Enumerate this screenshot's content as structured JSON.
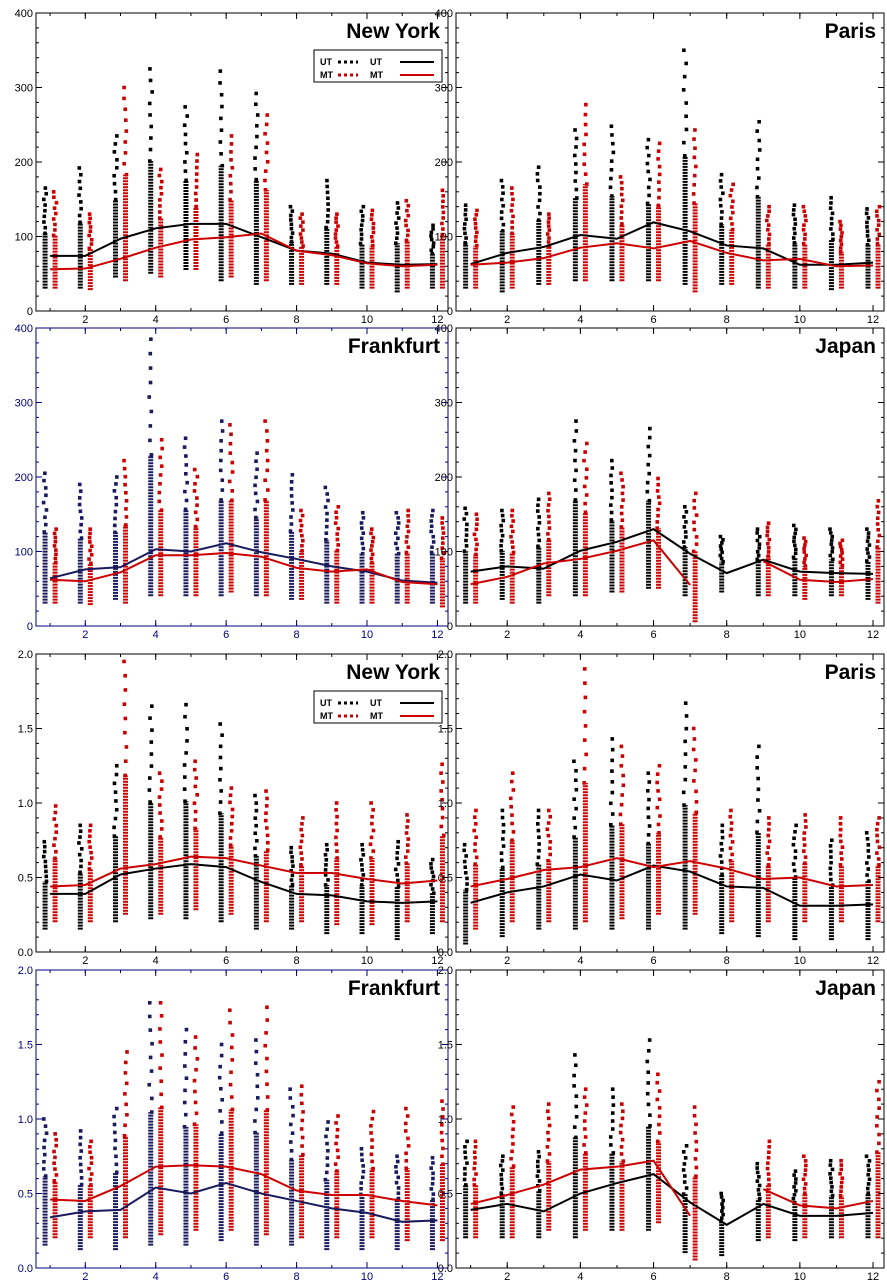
{
  "chart_data": [
    {
      "type": "line",
      "title": "New York",
      "xlim": [
        0.6,
        12.3
      ],
      "ylim": [
        0,
        400
      ],
      "xticks": [
        "2",
        "4",
        "6",
        "8",
        "10",
        "12"
      ],
      "yticks": [
        "0",
        "100",
        "200",
        "300",
        "400"
      ],
      "axis_color": "#000000",
      "legend": {
        "position": "top-right",
        "labels": [
          "UT",
          "UT",
          "MT",
          "MT"
        ]
      },
      "series": [
        {
          "name": "UT",
          "color": "#000000",
          "x": [
            1,
            2,
            3,
            4,
            5,
            6,
            7,
            8,
            9,
            10,
            11,
            12
          ],
          "y": [
            74,
            74,
            97,
            111,
            117,
            117,
            99,
            81,
            77,
            65,
            62,
            63
          ],
          "scatter_min": [
            30,
            30,
            45,
            50,
            55,
            40,
            35,
            35,
            35,
            30,
            25,
            30
          ],
          "scatter_max": [
            165,
            192,
            235,
            325,
            274,
            322,
            292,
            140,
            175,
            140,
            145,
            115
          ]
        },
        {
          "name": "MT",
          "color": "#cc0000",
          "x": [
            1,
            2,
            3,
            4,
            5,
            6,
            7,
            8,
            9,
            10,
            11,
            12
          ],
          "y": [
            56,
            57,
            70,
            85,
            96,
            99,
            104,
            81,
            75,
            64,
            60,
            62
          ],
          "scatter_min": [
            30,
            28,
            40,
            45,
            55,
            45,
            40,
            35,
            35,
            30,
            30,
            30
          ],
          "scatter_max": [
            160,
            130,
            300,
            190,
            210,
            235,
            263,
            130,
            130,
            135,
            148,
            162
          ]
        }
      ]
    },
    {
      "type": "line",
      "title": "Paris",
      "xlim": [
        0.6,
        12.3
      ],
      "ylim": [
        0,
        400
      ],
      "xticks": [
        "2",
        "4",
        "6",
        "8",
        "10",
        "12"
      ],
      "yticks": [
        "0",
        "100",
        "200",
        "300",
        "400"
      ],
      "axis_color": "#000000",
      "series": [
        {
          "name": "UT",
          "color": "#000000",
          "x": [
            1,
            2,
            3,
            4,
            5,
            6,
            7,
            8,
            9,
            10,
            11,
            12
          ],
          "y": [
            63,
            78,
            86,
            102,
            97,
            119,
            107,
            88,
            84,
            62,
            62,
            65
          ],
          "scatter_min": [
            30,
            25,
            35,
            40,
            40,
            40,
            35,
            35,
            30,
            30,
            28,
            30
          ],
          "scatter_max": [
            142,
            175,
            193,
            243,
            248,
            230,
            350,
            183,
            254,
            142,
            152,
            137
          ]
        },
        {
          "name": "MT",
          "color": "#cc0000",
          "x": [
            1,
            2,
            3,
            4,
            5,
            6,
            7,
            8,
            9,
            10,
            11,
            12
          ],
          "y": [
            62,
            65,
            71,
            85,
            91,
            84,
            94,
            78,
            68,
            70,
            60,
            61
          ],
          "scatter_min": [
            30,
            30,
            35,
            40,
            40,
            40,
            25,
            35,
            30,
            30,
            30,
            30
          ],
          "scatter_max": [
            135,
            165,
            130,
            277,
            180,
            225,
            243,
            170,
            140,
            140,
            120,
            140
          ]
        }
      ]
    },
    {
      "type": "line",
      "title": "Frankfurt",
      "xlim": [
        0.6,
        12.3
      ],
      "ylim": [
        0,
        400
      ],
      "xticks": [
        "2",
        "4",
        "6",
        "8",
        "10",
        "12"
      ],
      "yticks": [
        "0",
        "100",
        "200",
        "300",
        "400"
      ],
      "axis_color": "#000080",
      "series": [
        {
          "name": "UT",
          "color": "#1a1a5e",
          "x": [
            1,
            2,
            3,
            4,
            5,
            6,
            7,
            8,
            9,
            10,
            11,
            12
          ],
          "y": [
            64,
            76,
            79,
            103,
            100,
            111,
            99,
            90,
            80,
            73,
            61,
            58
          ],
          "scatter_min": [
            30,
            30,
            35,
            40,
            40,
            40,
            40,
            35,
            30,
            30,
            30,
            30
          ],
          "scatter_max": [
            205,
            190,
            200,
            385,
            252,
            275,
            232,
            203,
            186,
            152,
            152,
            155
          ]
        },
        {
          "name": "MT",
          "color": "#cc0000",
          "x": [
            1,
            2,
            3,
            4,
            5,
            6,
            7,
            8,
            9,
            10,
            11,
            12
          ],
          "y": [
            62,
            60,
            72,
            95,
            95,
            98,
            93,
            78,
            73,
            76,
            59,
            56
          ],
          "scatter_min": [
            30,
            28,
            30,
            40,
            40,
            45,
            40,
            35,
            30,
            30,
            30,
            25
          ],
          "scatter_max": [
            130,
            130,
            222,
            250,
            210,
            270,
            275,
            155,
            160,
            130,
            155,
            145
          ]
        }
      ]
    },
    {
      "type": "line",
      "title": "Japan",
      "xlim": [
        0.6,
        12.3
      ],
      "ylim": [
        0,
        400
      ],
      "xticks": [
        "2",
        "4",
        "6",
        "8",
        "10",
        "12"
      ],
      "yticks": [
        "0",
        "100",
        "200",
        "300",
        "400"
      ],
      "axis_color": "#000000",
      "series": [
        {
          "name": "UT",
          "color": "#000000",
          "x": [
            1,
            2,
            3,
            4,
            5,
            6,
            7,
            8,
            9,
            10,
            11,
            12
          ],
          "y": [
            73,
            80,
            77,
            101,
            113,
            130,
            97,
            71,
            89,
            73,
            71,
            70
          ],
          "scatter_min": [
            30,
            35,
            30,
            40,
            45,
            50,
            40,
            45,
            40,
            40,
            40,
            35
          ],
          "scatter_max": [
            158,
            155,
            170,
            275,
            222,
            265,
            160,
            120,
            130,
            135,
            130,
            130
          ]
        },
        {
          "name": "MT",
          "color": "#cc0000",
          "x": [
            1,
            2,
            3,
            4,
            5,
            6,
            7,
            8,
            9,
            10,
            11,
            12
          ],
          "y": [
            56,
            66,
            84,
            90,
            101,
            115,
            55,
            null,
            87,
            62,
            59,
            63
          ],
          "scatter_min": [
            30,
            30,
            40,
            40,
            45,
            50,
            5,
            null,
            40,
            35,
            40,
            30
          ],
          "scatter_max": [
            150,
            155,
            178,
            245,
            205,
            198,
            178,
            null,
            138,
            118,
            115,
            168
          ]
        }
      ]
    },
    {
      "type": "line",
      "title": "New York",
      "xlim": [
        0.6,
        12.3
      ],
      "ylim": [
        0,
        2
      ],
      "xticks": [
        "2",
        "4",
        "6",
        "8",
        "10",
        "12"
      ],
      "yticks": [
        "0.0",
        "0.5",
        "1.0",
        "1.5",
        "2.0"
      ],
      "axis_color": "#000000",
      "legend": {
        "position": "top-right",
        "labels": [
          "UT",
          "UT",
          "MT",
          "MT"
        ]
      },
      "series": [
        {
          "name": "UT",
          "color": "#000000",
          "x": [
            1,
            2,
            3,
            4,
            5,
            6,
            7,
            8,
            9,
            10,
            11,
            12
          ],
          "y": [
            0.39,
            0.39,
            0.52,
            0.56,
            0.59,
            0.57,
            0.47,
            0.39,
            0.38,
            0.34,
            0.33,
            0.34
          ],
          "scatter_min": [
            0.15,
            0.15,
            0.2,
            0.22,
            0.22,
            0.2,
            0.15,
            0.15,
            0.12,
            0.12,
            0.08,
            0.12
          ],
          "scatter_max": [
            0.74,
            0.85,
            1.25,
            1.65,
            1.66,
            1.53,
            1.05,
            0.7,
            0.72,
            0.72,
            0.74,
            0.62
          ]
        },
        {
          "name": "MT",
          "color": "#cc0000",
          "x": [
            1,
            2,
            3,
            4,
            5,
            6,
            7,
            8,
            9,
            10,
            11,
            12
          ],
          "y": [
            0.44,
            0.45,
            0.56,
            0.59,
            0.64,
            0.63,
            0.58,
            0.53,
            0.53,
            0.49,
            0.46,
            0.48
          ],
          "scatter_min": [
            0.2,
            0.2,
            0.25,
            0.25,
            0.28,
            0.25,
            0.2,
            0.2,
            0.18,
            0.18,
            0.2,
            0.2
          ],
          "scatter_max": [
            0.98,
            0.85,
            1.95,
            1.2,
            1.28,
            1.1,
            1.08,
            0.9,
            1.0,
            1.0,
            0.92,
            1.26
          ]
        }
      ]
    },
    {
      "type": "line",
      "title": "Paris",
      "xlim": [
        0.6,
        12.3
      ],
      "ylim": [
        0,
        2
      ],
      "xticks": [
        "2",
        "4",
        "6",
        "8",
        "10",
        "12"
      ],
      "yticks": [
        "0.0",
        "0.5",
        "1.0",
        "1.5",
        "2.0"
      ],
      "axis_color": "#000000",
      "series": [
        {
          "name": "UT",
          "color": "#000000",
          "x": [
            1,
            2,
            3,
            4,
            5,
            6,
            7,
            8,
            9,
            10,
            11,
            12
          ],
          "y": [
            0.33,
            0.4,
            0.44,
            0.52,
            0.48,
            0.58,
            0.54,
            0.44,
            0.43,
            0.31,
            0.31,
            0.32
          ],
          "scatter_min": [
            0.05,
            0.1,
            0.15,
            0.15,
            0.15,
            0.15,
            0.15,
            0.12,
            0.1,
            0.08,
            0.08,
            0.08
          ],
          "scatter_max": [
            0.72,
            0.95,
            0.95,
            1.28,
            1.43,
            1.2,
            1.67,
            0.85,
            1.38,
            0.85,
            0.75,
            0.8
          ]
        },
        {
          "name": "MT",
          "color": "#cc0000",
          "x": [
            1,
            2,
            3,
            4,
            5,
            6,
            7,
            8,
            9,
            10,
            11,
            12
          ],
          "y": [
            0.44,
            0.49,
            0.55,
            0.57,
            0.63,
            0.57,
            0.61,
            0.56,
            0.49,
            0.5,
            0.44,
            0.45
          ],
          "scatter_min": [
            0.15,
            0.2,
            0.2,
            0.2,
            0.22,
            0.25,
            0.25,
            0.2,
            0.2,
            0.2,
            0.2,
            0.2
          ],
          "scatter_max": [
            0.95,
            1.2,
            0.95,
            1.9,
            1.38,
            1.25,
            1.5,
            0.95,
            0.9,
            0.92,
            0.9,
            0.9
          ]
        }
      ]
    },
    {
      "type": "line",
      "title": "Frankfurt",
      "xlim": [
        0.6,
        12.3
      ],
      "ylim": [
        0,
        2
      ],
      "xticks": [
        "2",
        "4",
        "6",
        "8",
        "10",
        "12"
      ],
      "yticks": [
        "0.0",
        "0.5",
        "1.0",
        "1.5",
        "2.0"
      ],
      "axis_color": "#000080",
      "series": [
        {
          "name": "UT",
          "color": "#1a1a5e",
          "x": [
            1,
            2,
            3,
            4,
            5,
            6,
            7,
            8,
            9,
            10,
            11,
            12
          ],
          "y": [
            0.34,
            0.38,
            0.39,
            0.54,
            0.5,
            0.57,
            0.5,
            0.45,
            0.4,
            0.37,
            0.31,
            0.32
          ],
          "scatter_min": [
            0.15,
            0.12,
            0.12,
            0.15,
            0.15,
            0.18,
            0.15,
            0.15,
            0.12,
            0.12,
            0.12,
            0.12
          ],
          "scatter_max": [
            1.0,
            0.92,
            1.07,
            1.78,
            1.6,
            1.5,
            1.53,
            1.2,
            0.98,
            0.8,
            0.75,
            0.74
          ]
        },
        {
          "name": "MT",
          "color": "#cc0000",
          "x": [
            1,
            2,
            3,
            4,
            5,
            6,
            7,
            8,
            9,
            10,
            11,
            12
          ],
          "y": [
            0.46,
            0.45,
            0.55,
            0.68,
            0.69,
            0.68,
            0.63,
            0.52,
            0.49,
            0.49,
            0.45,
            0.42
          ],
          "scatter_min": [
            0.2,
            0.2,
            0.2,
            0.22,
            0.25,
            0.25,
            0.22,
            0.2,
            0.2,
            0.2,
            0.18,
            0.18
          ],
          "scatter_max": [
            0.9,
            0.85,
            1.45,
            1.78,
            1.55,
            1.73,
            1.75,
            1.22,
            1.02,
            1.05,
            1.07,
            1.12
          ]
        }
      ]
    },
    {
      "type": "line",
      "title": "Japan",
      "xlim": [
        0.6,
        12.3
      ],
      "ylim": [
        0,
        2
      ],
      "xticks": [
        "2",
        "4",
        "6",
        "8",
        "10",
        "12"
      ],
      "yticks": [
        "0.0",
        "0.5",
        "1.0",
        "1.5",
        "2.0"
      ],
      "axis_color": "#000000",
      "series": [
        {
          "name": "UT",
          "color": "#000000",
          "x": [
            1,
            2,
            3,
            4,
            5,
            6,
            7,
            8,
            9,
            10,
            11,
            12
          ],
          "y": [
            0.39,
            0.43,
            0.38,
            0.5,
            0.57,
            0.63,
            0.44,
            0.29,
            0.43,
            0.35,
            0.35,
            0.37
          ],
          "scatter_min": [
            0.2,
            0.2,
            0.2,
            0.2,
            0.25,
            0.25,
            0.1,
            0.08,
            0.18,
            0.18,
            0.2,
            0.2
          ],
          "scatter_max": [
            0.85,
            0.75,
            0.78,
            1.43,
            1.2,
            1.53,
            0.82,
            0.5,
            0.7,
            0.65,
            0.72,
            0.75
          ]
        },
        {
          "name": "MT",
          "color": "#cc0000",
          "x": [
            1,
            2,
            3,
            4,
            5,
            6,
            7,
            8,
            9,
            10,
            11,
            12
          ],
          "y": [
            0.43,
            0.49,
            0.56,
            0.66,
            0.68,
            0.72,
            0.35,
            null,
            0.53,
            0.42,
            0.4,
            0.45
          ],
          "scatter_min": [
            0.2,
            0.2,
            0.25,
            0.25,
            0.25,
            0.3,
            0.05,
            null,
            0.2,
            0.2,
            0.2,
            0.2
          ],
          "scatter_max": [
            0.85,
            1.08,
            1.1,
            1.2,
            1.1,
            1.3,
            1.08,
            null,
            0.85,
            0.75,
            0.72,
            1.25
          ]
        }
      ]
    }
  ]
}
